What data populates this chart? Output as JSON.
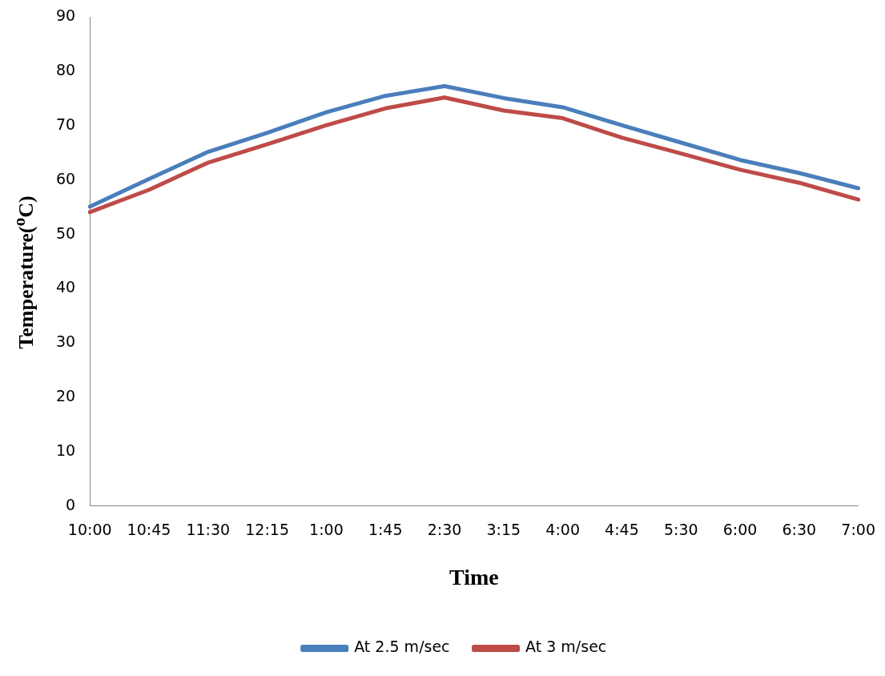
{
  "chart_data": {
    "type": "line",
    "xlabel": "Time",
    "ylabel": "Temperature($^{o}$C)",
    "categories": [
      "10:00",
      "10:45",
      "11:30",
      "12:15",
      "1:00",
      "1:45",
      "2:30",
      "3:15",
      "4:00",
      "4:45",
      "5:30",
      "6:00",
      "6:30",
      "7:00"
    ],
    "series": [
      {
        "name": "At 2.5 m/sec",
        "color": "#4a7ebb",
        "values": [
          55.1,
          60.2,
          65.2,
          68.7,
          72.5,
          75.5,
          77.3,
          75.1,
          73.4,
          70.1,
          66.9,
          63.7,
          61.3,
          58.5
        ]
      },
      {
        "name": "At 3 m/sec",
        "color": "#be4b48",
        "values": [
          54.1,
          58.2,
          63.2,
          66.6,
          70.1,
          73.2,
          75.2,
          72.8,
          71.4,
          67.8,
          64.9,
          61.9,
          59.5,
          56.4
        ]
      }
    ],
    "ylim": [
      0,
      90
    ],
    "yticks": [
      0,
      10,
      20,
      30,
      40,
      50,
      60,
      70,
      80,
      90
    ],
    "grid": false,
    "legend": "bottom",
    "marker": "none",
    "line_style": "solid"
  }
}
